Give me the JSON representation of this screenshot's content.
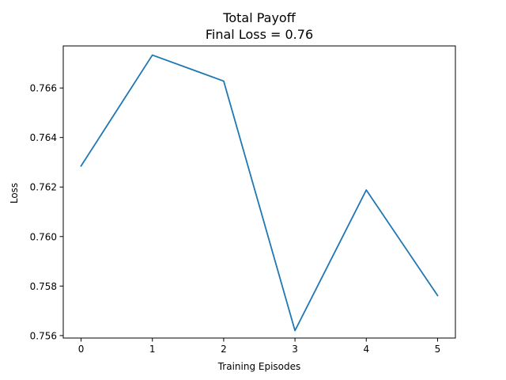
{
  "chart_data": {
    "type": "line",
    "title": "Total Payoff",
    "subtitle": "Final Loss = 0.76",
    "xlabel": "Training Episodes",
    "ylabel": "Loss",
    "x": [
      0,
      1,
      2,
      3,
      4,
      5
    ],
    "x_ticks": [
      "0",
      "1",
      "2",
      "3",
      "4",
      "5"
    ],
    "y_ticks": [
      "0.756",
      "0.758",
      "0.760",
      "0.762",
      "0.764",
      "0.766"
    ],
    "xlim": [
      -0.25,
      5.25
    ],
    "ylim": [
      0.7559,
      0.7677
    ],
    "grid": false,
    "series": [
      {
        "values": [
          0.76285,
          0.76733,
          0.76628,
          0.7562,
          0.76188,
          0.75762
        ],
        "color": "#1f77b4"
      }
    ]
  }
}
